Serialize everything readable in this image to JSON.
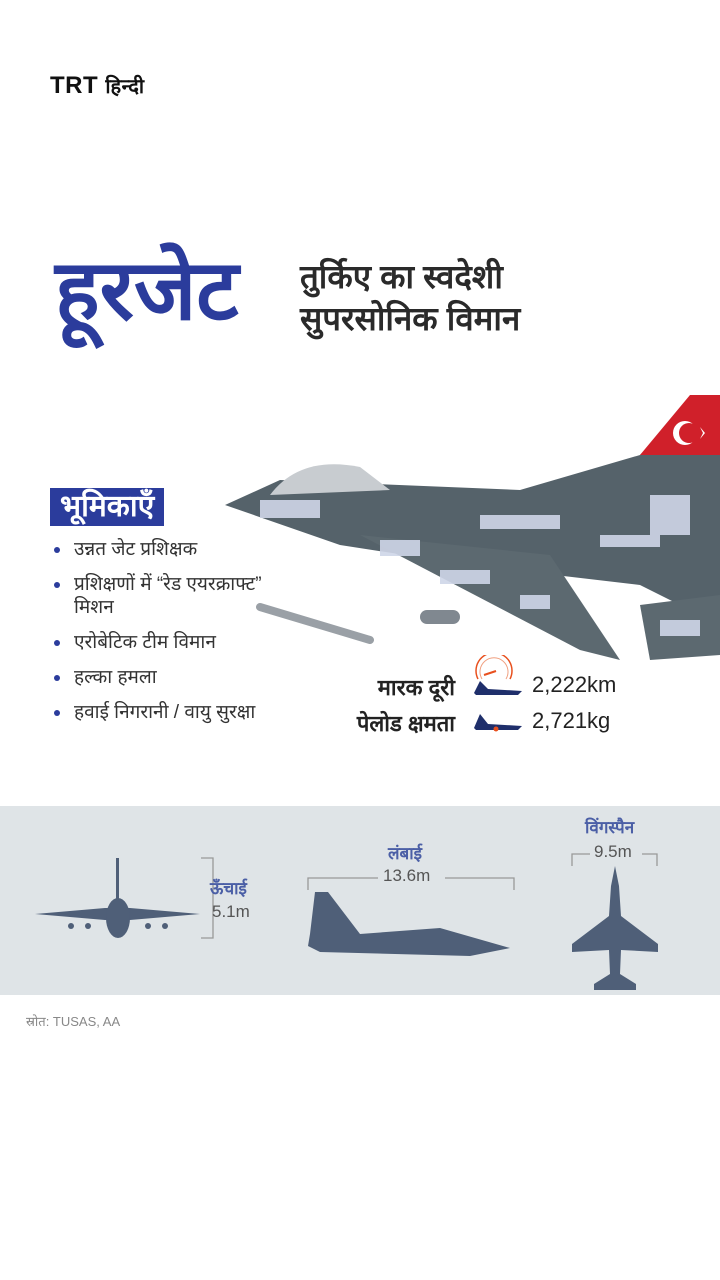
{
  "brand": {
    "logo_latin": "TRT",
    "logo_hindi": "हिन्दी"
  },
  "header": {
    "title": "हूरजेट",
    "subtitle_line1": "तुर्किए का स्वदेशी",
    "subtitle_line2": "सुपरसोनिक विमान"
  },
  "roles": {
    "heading": "भूमिकाएँ",
    "items": [
      "उन्नत जेट प्रशिक्षक",
      "प्रशिक्षणों में “रेड एयरक्राफ्ट” मिशन",
      "एरोबेटिक टीम विमान",
      "हल्का हमला",
      "हवाई निगरानी / वायु सुरक्षा"
    ]
  },
  "stats": [
    {
      "label": "मारक दूरी",
      "value": "2,222km",
      "icon": "range-gauge-jet-icon"
    },
    {
      "label": "पेलोड क्षमता",
      "value": "2,721kg",
      "icon": "payload-jet-icon"
    }
  ],
  "dimensions": {
    "height": {
      "label": "ऊँचाई",
      "value": "5.1m"
    },
    "length": {
      "label": "लंबाई",
      "value": "13.6m"
    },
    "wingspan": {
      "label": "विंगस्पैन",
      "value": "9.5m"
    }
  },
  "source": "स्रोत: TUSAS, AA",
  "colors": {
    "brand_blue": "#2b3c9c",
    "band_gray": "#dfe4e7",
    "jet_gray": "#4f5f78",
    "flag_red": "#d0202a",
    "accent_orange": "#e8501e"
  }
}
